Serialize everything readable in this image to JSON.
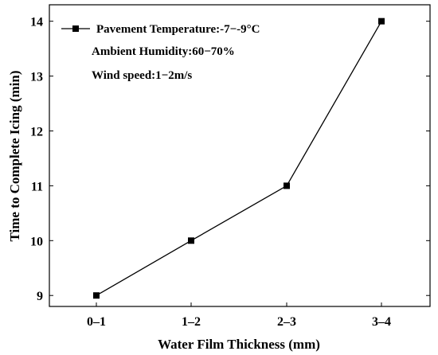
{
  "chart_data": {
    "type": "line",
    "categories": [
      "0–1",
      "1–2",
      "2–3",
      "3–4"
    ],
    "series": [
      {
        "name": "Pavement Temperature:-7−-9°C",
        "values": [
          9,
          10,
          11,
          14
        ],
        "color": "#000000",
        "marker": "square"
      }
    ],
    "annotations": [
      "Ambient Humidity:60−70%",
      "Wind speed:1−2m/s"
    ],
    "title": "",
    "xlabel": "Water Film Thickness (mm)",
    "ylabel": "Time to Complete Icing (min)",
    "yticks": [
      9,
      10,
      11,
      12,
      13,
      14
    ],
    "ylim": [
      8.8,
      14.3
    ],
    "grid": false,
    "legend_position": "top-left"
  }
}
